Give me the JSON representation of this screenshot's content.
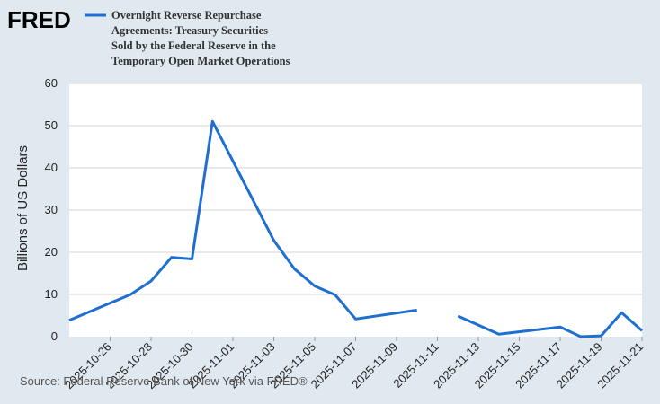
{
  "logo": {
    "text": "FRED"
  },
  "legend": {
    "lines": [
      "Overnight Reverse Repurchase",
      "Agreements: Treasury Securities",
      "Sold by the Federal Reserve in the",
      "Temporary Open Market Operations"
    ]
  },
  "source": "Source: Federal Reserve Bank of New York via FRED®",
  "colors": {
    "series": "#1f6fd1",
    "background": "#e1e9f0",
    "plot": "#ffffff",
    "grid": "#d6d6d6"
  },
  "chart_data": {
    "type": "line",
    "title": "Overnight Reverse Repurchase Agreements: Treasury Securities Sold by the Federal Reserve in the Temporary Open Market Operations",
    "xlabel": "",
    "ylabel": "Billions of US Dollars",
    "ylim": [
      0,
      60
    ],
    "yticks": [
      0,
      10,
      20,
      30,
      40,
      50,
      60
    ],
    "xlim": [
      "2025-10-24",
      "2025-11-21"
    ],
    "xticks": [
      "2025-10-26",
      "2025-10-28",
      "2025-10-30",
      "2025-11-01",
      "2025-11-03",
      "2025-11-05",
      "2025-11-07",
      "2025-11-09",
      "2025-11-11",
      "2025-11-13",
      "2025-11-15",
      "2025-11-17",
      "2025-11-19",
      "2025-11-21"
    ],
    "grid": true,
    "series": [
      {
        "name": "Overnight Reverse Repurchase Agreements",
        "points": [
          {
            "date": "2025-10-24",
            "value": 3.9
          },
          {
            "date": "2025-10-27",
            "value": 10.0
          },
          {
            "date": "2025-10-28",
            "value": 13.2
          },
          {
            "date": "2025-10-29",
            "value": 18.8
          },
          {
            "date": "2025-10-30",
            "value": 18.4
          },
          {
            "date": "2025-10-31",
            "value": 51.0
          },
          {
            "date": "2025-11-03",
            "value": 22.8
          },
          {
            "date": "2025-11-04",
            "value": 16.1
          },
          {
            "date": "2025-11-05",
            "value": 12.0
          },
          {
            "date": "2025-11-06",
            "value": 9.9
          },
          {
            "date": "2025-11-07",
            "value": 4.2
          },
          {
            "date": "2025-11-10",
            "value": 6.3
          },
          {
            "date": "2025-11-11",
            "value": null
          },
          {
            "date": "2025-11-12",
            "value": 4.9
          },
          {
            "date": "2025-11-14",
            "value": 0.6
          },
          {
            "date": "2025-11-17",
            "value": 2.3
          },
          {
            "date": "2025-11-18",
            "value": 0.0
          },
          {
            "date": "2025-11-19",
            "value": 0.2
          },
          {
            "date": "2025-11-20",
            "value": 5.7
          },
          {
            "date": "2025-11-21",
            "value": 1.4
          }
        ]
      }
    ]
  }
}
